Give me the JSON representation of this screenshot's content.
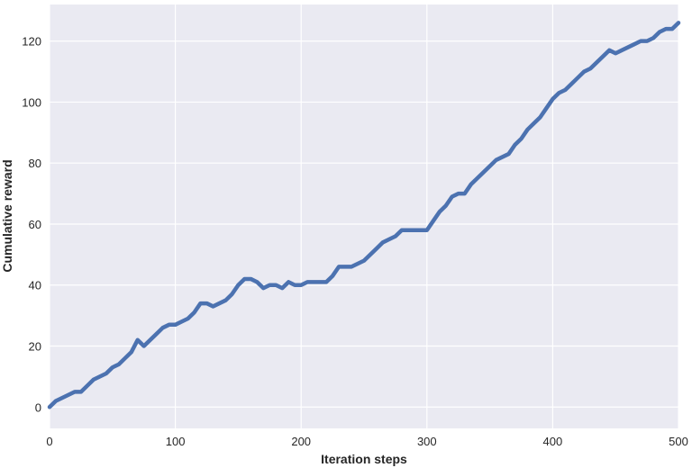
{
  "chart_data": {
    "type": "line",
    "title": "",
    "xlabel": "Iteration steps",
    "ylabel": "Cumulative reward",
    "xlim": [
      0,
      500
    ],
    "ylim": [
      -7,
      132
    ],
    "xticks": [
      0,
      100,
      200,
      300,
      400,
      500
    ],
    "yticks": [
      0,
      20,
      40,
      60,
      80,
      100,
      120
    ],
    "xtick_labels": [
      "0",
      "100",
      "200",
      "300",
      "400",
      "500"
    ],
    "ytick_labels": [
      "0",
      "20",
      "40",
      "60",
      "80",
      "100",
      "120"
    ],
    "grid": true,
    "background": "#eaeaf2",
    "grid_color": "#ffffff",
    "series": [
      {
        "color": "#4c72b0",
        "x": [
          0,
          5,
          10,
          15,
          20,
          25,
          30,
          35,
          40,
          45,
          50,
          55,
          60,
          65,
          70,
          75,
          80,
          85,
          90,
          95,
          100,
          105,
          110,
          115,
          120,
          125,
          130,
          135,
          140,
          145,
          150,
          155,
          160,
          165,
          170,
          175,
          180,
          185,
          190,
          195,
          200,
          205,
          210,
          215,
          220,
          225,
          230,
          235,
          240,
          245,
          250,
          255,
          260,
          265,
          270,
          275,
          280,
          285,
          290,
          295,
          300,
          305,
          310,
          315,
          320,
          325,
          330,
          335,
          340,
          345,
          350,
          355,
          360,
          365,
          370,
          375,
          380,
          385,
          390,
          395,
          400,
          405,
          410,
          415,
          420,
          425,
          430,
          435,
          440,
          445,
          450,
          455,
          460,
          465,
          470,
          475,
          480,
          485,
          490,
          495,
          500
        ],
        "y": [
          0,
          2,
          3,
          4,
          5,
          5,
          7,
          9,
          10,
          11,
          13,
          14,
          16,
          18,
          22,
          20,
          22,
          24,
          26,
          27,
          27,
          28,
          29,
          31,
          34,
          34,
          33,
          34,
          35,
          37,
          40,
          42,
          42,
          41,
          39,
          40,
          40,
          39,
          41,
          40,
          40,
          41,
          41,
          41,
          41,
          43,
          46,
          46,
          46,
          47,
          48,
          50,
          52,
          54,
          55,
          56,
          58,
          58,
          58,
          58,
          58,
          61,
          64,
          66,
          69,
          70,
          70,
          73,
          75,
          77,
          79,
          81,
          82,
          83,
          86,
          88,
          91,
          93,
          95,
          98,
          101,
          103,
          104,
          106,
          108,
          110,
          111,
          113,
          115,
          117,
          116,
          117,
          118,
          119,
          120,
          120,
          121,
          123,
          124,
          124,
          126
        ]
      }
    ]
  }
}
